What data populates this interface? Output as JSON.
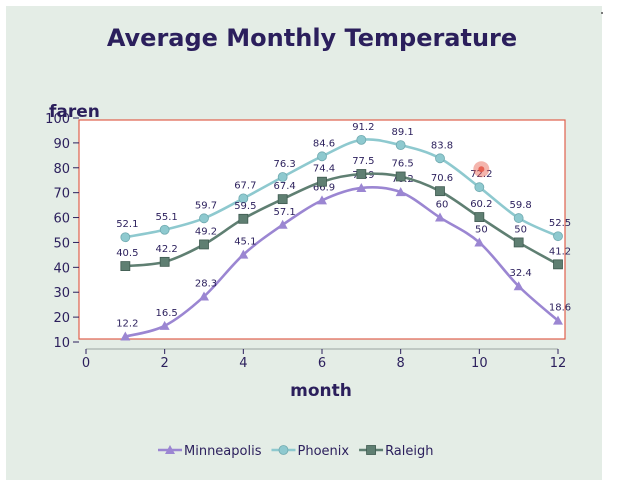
{
  "chart_data": {
    "type": "line",
    "title": "Average Monthly Temperature",
    "xlabel": "month",
    "ylabel": "faren",
    "xlim": [
      0,
      12
    ],
    "ylim": [
      10,
      100
    ],
    "x_ticks": [
      0,
      2,
      4,
      6,
      8,
      10,
      12
    ],
    "y_ticks": [
      10,
      20,
      30,
      40,
      50,
      60,
      70,
      80,
      90,
      100
    ],
    "grid": false,
    "legend": "bottom",
    "x": [
      1,
      2,
      3,
      4,
      5,
      6,
      7,
      8,
      9,
      10,
      11,
      12
    ],
    "series": [
      {
        "name": "Minneapolis",
        "marker": "triangle",
        "color": "#9b86d2",
        "values": [
          12.2,
          16.5,
          28.3,
          45.1,
          57.1,
          66.9,
          71.9,
          70.2,
          60,
          50,
          32.4,
          18.6
        ],
        "labels": [
          "12.2",
          "16.5",
          "28.3",
          "45.1",
          "57.1",
          "66.9",
          "71.9",
          "70.2",
          "60",
          "50",
          "32.4",
          "18.6"
        ]
      },
      {
        "name": "Phoenix",
        "marker": "circle",
        "color": "#8ec9cf",
        "values": [
          52.1,
          55.1,
          59.7,
          67.7,
          76.3,
          84.6,
          91.2,
          89.1,
          83.8,
          72.2,
          59.8,
          52.5
        ],
        "labels": [
          "52.1",
          "55.1",
          "59.7",
          "67.7",
          "76.3",
          "84.6",
          "91.2",
          "89.1",
          "83.8",
          "72.2",
          "59.8",
          "52.5"
        ]
      },
      {
        "name": "Raleigh",
        "marker": "square",
        "color": "#5f7f72",
        "values": [
          40.5,
          42.2,
          49.2,
          59.5,
          67.4,
          74.4,
          77.5,
          76.5,
          70.6,
          60.2,
          50,
          41.2
        ],
        "labels": [
          "40.5",
          "42.2",
          "49.2",
          "59.5",
          "67.4",
          "74.4",
          "77.5",
          "76.5",
          "70.6",
          "60.2",
          "50",
          "41.2"
        ]
      }
    ],
    "colors": {
      "title": "#2b1f5c",
      "text": "#2b1f5c",
      "plot_border": "#e0604c",
      "plot_background": "#ffffff",
      "panel_background": "#e4ede6",
      "cursor_highlight": "#e65a4a"
    }
  }
}
